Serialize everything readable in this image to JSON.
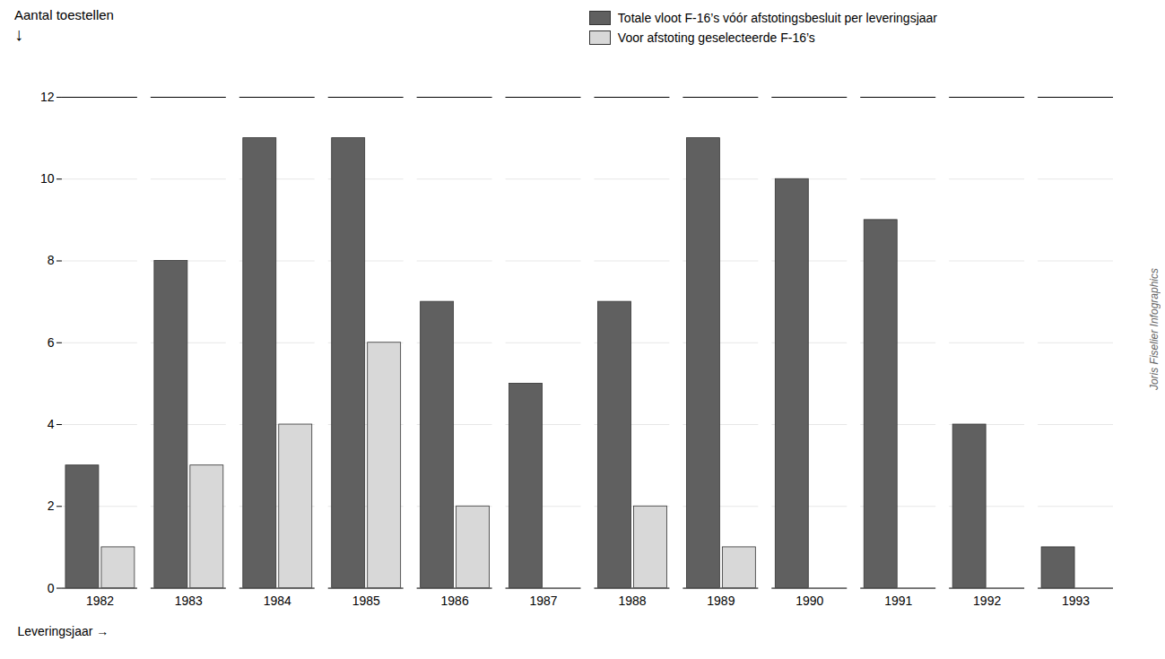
{
  "chart_data": {
    "type": "bar",
    "ylabel": "Aantal toestellen",
    "xlabel": "Leveringsjaar →",
    "categories": [
      "1982",
      "1983",
      "1984",
      "1985",
      "1986",
      "1987",
      "1988",
      "1989",
      "1990",
      "1991",
      "1992",
      "1993"
    ],
    "series": [
      {
        "name": "Totale vloot F-16’s vóór afstotingsbesluit per leveringsjaar",
        "color": "#606060",
        "values": [
          3,
          8,
          11,
          11,
          7,
          5,
          7,
          11,
          10,
          9,
          4,
          1
        ]
      },
      {
        "name": "Voor afstoting geselecteerde F-16’s",
        "color": "#d8d8d8",
        "values": [
          1,
          3,
          4,
          6,
          2,
          0,
          2,
          1,
          0,
          0,
          0,
          0
        ]
      }
    ],
    "ylim": [
      0,
      12
    ],
    "yticks": [
      0,
      2,
      4,
      6,
      8,
      10,
      12
    ],
    "legend": "top",
    "annotations": [
      "↓",
      "Joris Fiselier Infographics"
    ]
  }
}
